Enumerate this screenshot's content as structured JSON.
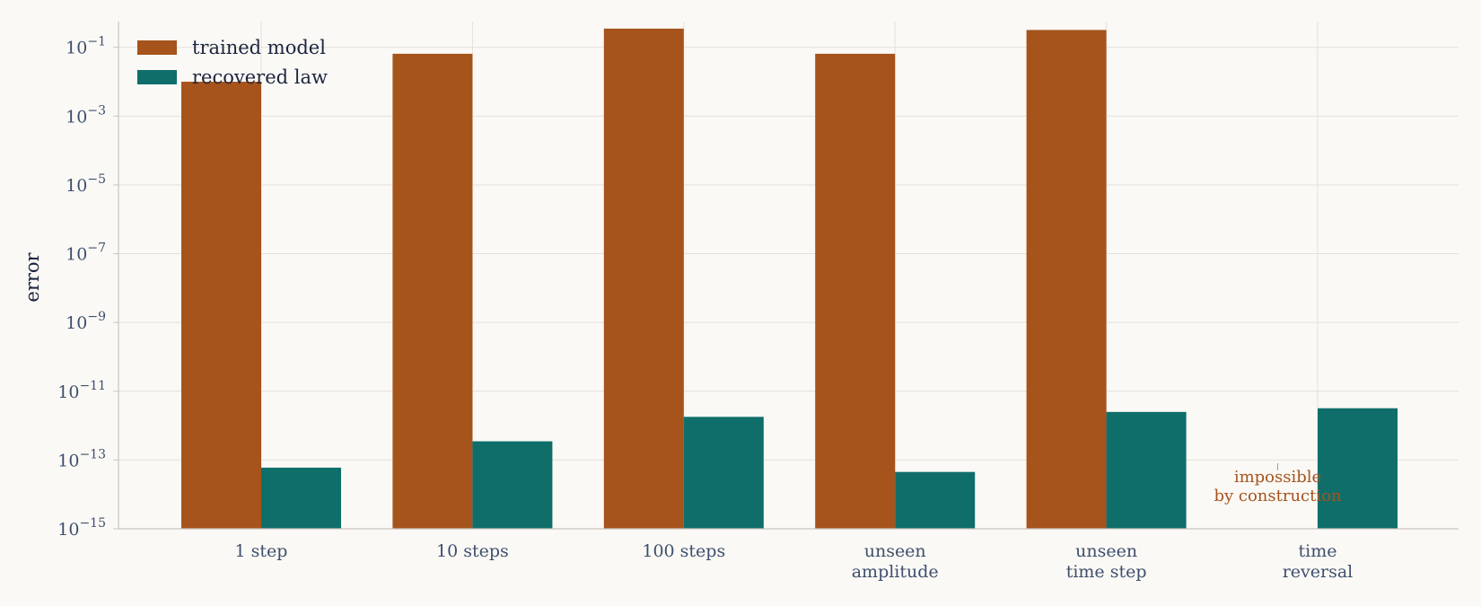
{
  "chart_data": {
    "type": "bar",
    "scale": "log",
    "ylabel": "error",
    "xlabel": "",
    "ylim": [
      1e-15,
      1
    ],
    "y_ticks": [
      {
        "value": 0.1,
        "label": "10",
        "exp": "−1"
      },
      {
        "value": 0.001,
        "label": "10",
        "exp": "−3"
      },
      {
        "value": 1e-05,
        "label": "10",
        "exp": "−5"
      },
      {
        "value": 1e-07,
        "label": "10",
        "exp": "−7"
      },
      {
        "value": 1e-09,
        "label": "10",
        "exp": "−9"
      },
      {
        "value": 1e-11,
        "label": "10",
        "exp": "−11"
      },
      {
        "value": 1e-13,
        "label": "10",
        "exp": "−13"
      },
      {
        "value": 1e-15,
        "label": "10",
        "exp": "−15"
      }
    ],
    "grid": true,
    "legend_position": "top-left",
    "categories": [
      [
        "1 step"
      ],
      [
        "10 steps"
      ],
      [
        "100 steps"
      ],
      [
        "unseen",
        "amplitude"
      ],
      [
        "unseen",
        "time step"
      ],
      [
        "time",
        "reversal"
      ]
    ],
    "series": [
      {
        "name": "trained model",
        "color": "#a6531c",
        "values": [
          0.01,
          0.065,
          0.35,
          0.065,
          0.32,
          null
        ]
      },
      {
        "name": "recovered law",
        "color": "#0f6e6a",
        "values": [
          6e-14,
          3.5e-13,
          1.8e-12,
          4.5e-14,
          2.5e-12,
          3.2e-12
        ]
      }
    ],
    "annotation": {
      "category_index": 5,
      "series_index": 0,
      "lines": [
        "impossible",
        "by construction"
      ],
      "color": "#a6531c"
    }
  }
}
